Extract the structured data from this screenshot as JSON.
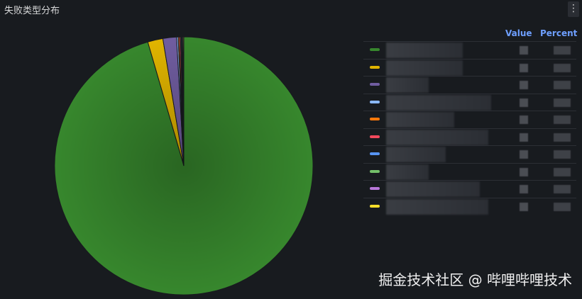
{
  "panel": {
    "title": "失败类型分布",
    "menu_icon": "kebab-menu-icon"
  },
  "legend": {
    "value_header": "Value",
    "percent_header": "Percent"
  },
  "chart_data": {
    "type": "pie",
    "title": "失败类型分布",
    "legend_placement": "right",
    "slices": [
      {
        "color": "#37872d",
        "percent": 95.5
      },
      {
        "color": "#e0b400",
        "percent": 1.9
      },
      {
        "color": "#705da0",
        "percent": 1.7
      },
      {
        "color": "#8ab8ff",
        "percent": 0.2
      },
      {
        "color": "#ff780a",
        "percent": 0.15
      },
      {
        "color": "#f2495c",
        "percent": 0.15
      },
      {
        "color": "#5794f2",
        "percent": 0.1
      },
      {
        "color": "#73bf69",
        "percent": 0.1
      },
      {
        "color": "#b877d9",
        "percent": 0.1
      },
      {
        "color": "#fade2a",
        "percent": 0.1
      }
    ]
  },
  "watermark": "掘金技术社区 @ 哔哩哔哩技术"
}
